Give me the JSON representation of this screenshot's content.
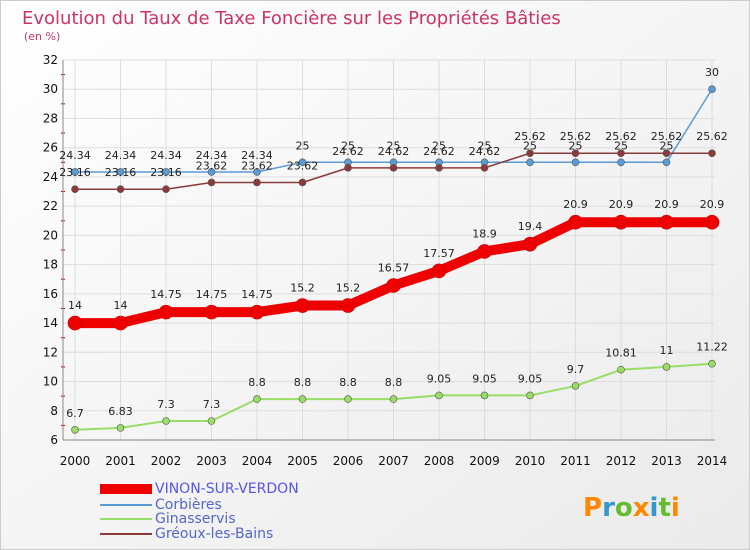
{
  "chart_data": {
    "type": "line",
    "title": "Evolution du Taux de Taxe Foncière sur les Propriétés Bâties",
    "subtitle": "(en %)",
    "x": [
      "2000",
      "2001",
      "2002",
      "2003",
      "2004",
      "2005",
      "2006",
      "2007",
      "2008",
      "2009",
      "2010",
      "2011",
      "2012",
      "2013",
      "2014"
    ],
    "ylim": [
      6,
      32
    ],
    "yticks": [
      6,
      8,
      10,
      12,
      14,
      16,
      18,
      20,
      22,
      24,
      26,
      28,
      30,
      32
    ],
    "grid": true,
    "legend_position": "bottom-left",
    "brand": "Proxiti",
    "series": [
      {
        "name": "VINON-SUR-VERDON",
        "color": "#ee0000",
        "values": [
          14,
          14,
          14.75,
          14.75,
          14.75,
          15.2,
          15.2,
          16.57,
          17.57,
          18.9,
          19.4,
          20.9,
          20.9,
          20.9,
          20.9
        ],
        "labels": [
          "14",
          "14",
          "14.75",
          "14.75",
          "14.75",
          "15.2",
          "15.2",
          "16.57",
          "17.57",
          "18.9",
          "19.4",
          "20.9",
          "20.9",
          "20.9",
          "20.9"
        ]
      },
      {
        "name": "Corbières",
        "color": "#5b9bd5",
        "values": [
          24.34,
          24.34,
          24.34,
          24.34,
          24.34,
          25,
          25,
          25,
          25,
          25,
          25,
          25,
          25,
          25,
          30
        ],
        "labels": [
          "24.34",
          "24.34",
          "24.34",
          "24.34",
          "24.34",
          "25",
          "25",
          "25",
          "25",
          "25",
          "25",
          "25",
          "25",
          "25",
          "30"
        ]
      },
      {
        "name": "Ginasservis",
        "color": "#99dd66",
        "values": [
          6.7,
          6.83,
          7.3,
          7.3,
          8.8,
          8.8,
          8.8,
          8.8,
          9.05,
          9.05,
          9.05,
          9.7,
          10.81,
          11,
          11.22
        ],
        "labels": [
          "6.7",
          "6.83",
          "7.3",
          "7.3",
          "8.8",
          "8.8",
          "8.8",
          "8.8",
          "9.05",
          "9.05",
          "9.05",
          "9.7",
          "10.81",
          "11",
          "11.22"
        ]
      },
      {
        "name": "Gréoux-les-Bains",
        "color": "#8b3a3a",
        "values": [
          23.16,
          23.16,
          23.16,
          23.62,
          23.62,
          23.62,
          24.62,
          24.62,
          24.62,
          24.62,
          25.62,
          25.62,
          25.62,
          25.62,
          25.62
        ],
        "labels": [
          "23.16",
          "23.16",
          "23.16",
          "23.62",
          "23.62",
          "23.62",
          "24.62",
          "24.62",
          "24.62",
          "24.62",
          "25.62",
          "25.62",
          "25.62",
          "25.62",
          "25.62"
        ]
      }
    ]
  }
}
